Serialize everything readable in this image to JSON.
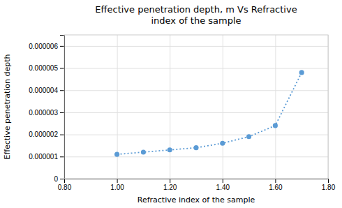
{
  "chart_data": {
    "type": "line",
    "title": "Effective penetration depth, m Vs Refractive\nindex of the sample",
    "x_label": "Refractive index of the  sample",
    "y_label": "Effective penetration depth",
    "x": [
      1.0,
      1.1,
      1.2,
      1.3,
      1.4,
      1.5,
      1.6,
      1.7
    ],
    "y": [
      1.1e-06,
      1.2e-06,
      1.3e-06,
      1.4e-06,
      1.6e-06,
      1.9e-06,
      2.4e-06,
      4.8e-06
    ],
    "xlim": [
      0.8,
      1.8
    ],
    "ylim": [
      0,
      6.5e-06
    ],
    "xticks": [
      {
        "value": 0.8,
        "label": "0.80"
      },
      {
        "value": 1.0,
        "label": "1.00"
      },
      {
        "value": 1.2,
        "label": "1.20"
      },
      {
        "value": 1.4,
        "label": "1.40"
      },
      {
        "value": 1.6,
        "label": "1.60"
      },
      {
        "value": 1.8,
        "label": "1.80"
      }
    ],
    "yticks": [
      0,
      {
        "value": 1e-06,
        "label": "0.000001"
      },
      {
        "value": 2e-06,
        "label": "0.000002"
      },
      {
        "value": 3e-06,
        "label": "0.000003"
      },
      {
        "value": 4e-06,
        "label": "0.000004"
      },
      {
        "value": 5e-06,
        "label": "0.000005"
      },
      {
        "value": 6e-06,
        "label": "0.000006"
      }
    ],
    "color": "#5b9bd5",
    "marker": "circle",
    "line_style": "dotted",
    "grid": true
  }
}
